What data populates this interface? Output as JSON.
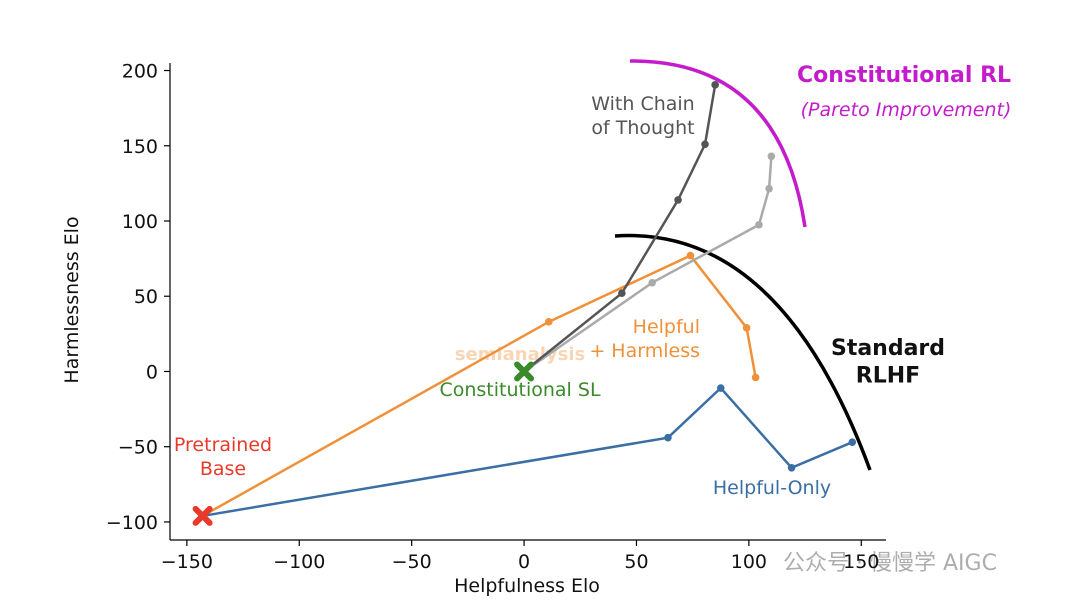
{
  "chart_data": {
    "type": "line",
    "xlabel": "Helpfulness Elo",
    "ylabel": "Harmlessness Elo",
    "xlim": [
      -157.5,
      161
    ],
    "ylim": [
      -112,
      205
    ],
    "xticks": [
      {
        "value": -150,
        "label": "−150"
      },
      {
        "value": -100,
        "label": "−100"
      },
      {
        "value": -50,
        "label": "−50"
      },
      0,
      50,
      100,
      150
    ],
    "yticks": [
      {
        "value": -100,
        "label": "−100"
      },
      {
        "value": -50,
        "label": "−50"
      },
      0,
      50,
      100,
      150,
      200
    ],
    "series": [
      {
        "name": "Helpful-Only",
        "color": "#3a6ea5",
        "x": [
          -143,
          64,
          87.5,
          119,
          146
        ],
        "values": [
          -96,
          -44,
          -11,
          -64,
          -47
        ]
      },
      {
        "name": "Helpful\n+ Harmless",
        "color": "#f0913a",
        "x": [
          -143,
          11,
          74,
          99,
          103
        ],
        "values": [
          -96,
          33,
          77,
          29,
          -4
        ]
      },
      {
        "color": "#aaaaaa",
        "x": [
          0,
          57,
          104.5,
          109,
          110
        ],
        "values": [
          0,
          59,
          97.5,
          121.5,
          143
        ]
      },
      {
        "name": "With Chain\nof Thought",
        "color": "#555555",
        "x": [
          0,
          43.5,
          68.5,
          80.5,
          85
        ],
        "values": [
          0,
          52,
          114,
          151,
          190.5
        ]
      }
    ],
    "markers": [
      {
        "name": "Pretrained\nBase",
        "color": "#e8392b",
        "x": -143,
        "y": -96
      },
      {
        "name": "Constitutional SL",
        "color": "#3a8a2a",
        "x": 0,
        "y": 0
      }
    ],
    "annotations": {
      "standard": "Standard\nRLHF",
      "constitutional": "Constitutional RL",
      "pareto": "(Pareto Improvement)"
    },
    "watermark": {
      "logo": "semianalysis",
      "account": "公众号 · 慢慢学 AIGC"
    }
  }
}
